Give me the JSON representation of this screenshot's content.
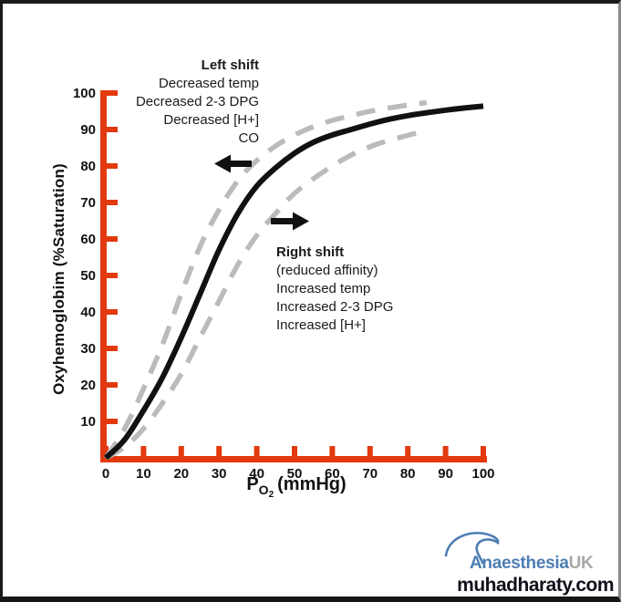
{
  "chart_data": {
    "type": "line",
    "xlabel": "PO2 (mmHg)",
    "ylabel": "Oxyhemoglobim  (%Saturation)",
    "xlim": [
      0,
      100
    ],
    "ylim": [
      0,
      100
    ],
    "x_ticks": [
      0,
      10,
      20,
      30,
      40,
      50,
      60,
      70,
      80,
      90,
      100
    ],
    "y_ticks": [
      10,
      20,
      30,
      40,
      50,
      60,
      70,
      80,
      90,
      100
    ],
    "grid": false,
    "legend": "none",
    "axis_color": "#e23a0e",
    "series": [
      {
        "name": "normal-curve",
        "style": "solid",
        "color": "#111111",
        "x": [
          0,
          5,
          10,
          15,
          20,
          25,
          30,
          35,
          40,
          45,
          50,
          55,
          60,
          65,
          70,
          75,
          80,
          85,
          90,
          95,
          100
        ],
        "y": [
          0,
          5,
          13,
          22,
          33,
          45,
          57,
          67,
          74.5,
          79.5,
          83.5,
          86.5,
          88.5,
          90,
          91.5,
          92.8,
          93.8,
          94.6,
          95.3,
          95.9,
          96.4
        ]
      },
      {
        "name": "left-shifted-curve",
        "style": "dashed",
        "color": "#bbbbbb",
        "x": [
          0,
          5,
          10,
          15,
          20,
          25,
          30,
          35,
          40,
          45,
          50,
          55,
          60,
          65,
          70,
          75,
          80,
          85
        ],
        "y": [
          0,
          8,
          19,
          31,
          45,
          58,
          68,
          76,
          81.5,
          85.5,
          88.5,
          90.8,
          92.5,
          93.8,
          95,
          95.9,
          96.7,
          97.4
        ]
      },
      {
        "name": "right-shifted-curve",
        "style": "dashed",
        "color": "#bbbbbb",
        "x": [
          0,
          5,
          10,
          15,
          20,
          25,
          30,
          35,
          40,
          45,
          50,
          55,
          60,
          65,
          70,
          75,
          80,
          83
        ],
        "y": [
          0,
          3,
          8,
          15,
          23,
          33,
          43,
          53,
          61,
          67,
          72.5,
          76.5,
          80,
          83,
          85.3,
          87,
          88.4,
          89.2
        ]
      }
    ]
  },
  "annotations": {
    "left_shift": {
      "title": "Left shift",
      "lines": [
        "Decreased temp",
        "Decreased 2-3 DPG",
        "Decreased [H+]",
        "CO"
      ]
    },
    "right_shift": {
      "title": "Right shift",
      "lines": [
        "(reduced affinity)",
        "Increased temp",
        "Increased 2-3 DPG",
        "Increased [H+]"
      ]
    }
  },
  "axes": {
    "y_title": "Oxyhemoglobim  (%Saturation)",
    "x_title": {
      "prefix": "P",
      "sub": "O",
      "subsub": "2",
      "suffix": "(mmHg)"
    }
  },
  "logo": {
    "name_primary": "Anaesthesia",
    "name_secondary": "UK",
    "primary_color": "#4d7eb3",
    "secondary_color": "#a8a8a8"
  },
  "watermark": {
    "text": "muhadharaty.com",
    "color": "#10101a"
  }
}
